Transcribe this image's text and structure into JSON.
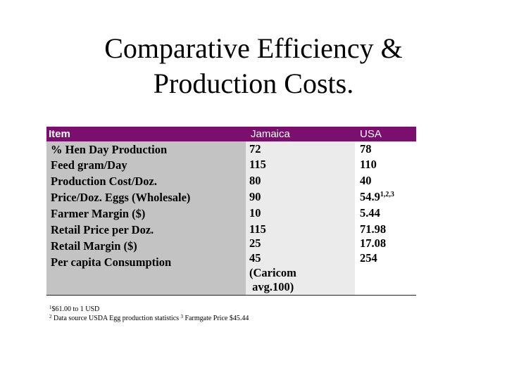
{
  "title": {
    "line1": "Comparative Efficiency &",
    "line2": "Production Costs."
  },
  "table": {
    "headers": {
      "item": "Item",
      "jamaica": "Jamaica",
      "usa": "USA"
    },
    "rows": [
      {
        "item": "% Hen Day Production",
        "jamaica": "72",
        "usa": "78",
        "usa_sup": ""
      },
      {
        "item": "Feed gram/Day",
        "jamaica": "115",
        "usa": "110",
        "usa_sup": ""
      },
      {
        "item": "Production Cost/Doz.",
        "jamaica": "80",
        "usa": "40",
        "usa_sup": ""
      },
      {
        "item": "Price/Doz. Eggs (Wholesale)",
        "jamaica": "90",
        "usa": "54.9",
        "usa_sup": "1,2,3"
      },
      {
        "item": "Farmer Margin ($)",
        "jamaica": "10",
        "usa": "5.44",
        "usa_sup": ""
      },
      {
        "item": "Retail Price per Doz.",
        "jamaica": "115",
        "usa": "71.98",
        "usa_sup": ""
      },
      {
        "item": "Retail Margin ($)",
        "jamaica": "25",
        "usa": "17.08",
        "usa_sup": ""
      },
      {
        "item": "Per capita Consumption",
        "jamaica": "45",
        "usa": "254",
        "usa_sup": ""
      }
    ],
    "jamaica_note_line1": "(Caricom",
    "jamaica_note_line2": " avg.100)"
  },
  "footnotes": {
    "fn1_marker": "1",
    "fn1_text": "$61.00 to 1 USD",
    "fn2_marker": "2",
    "fn2_text": " Data source USDA Egg production statistics",
    "fn3_marker": "3",
    "fn3_text": " Farmgate Price $45.44"
  }
}
